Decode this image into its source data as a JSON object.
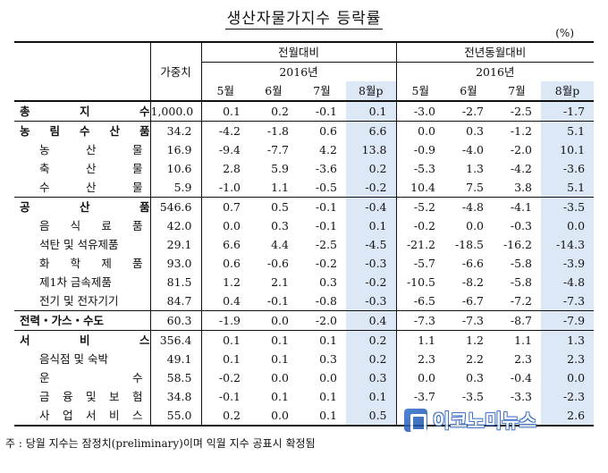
{
  "title": "생산자물가지수 등락률",
  "unit": "(%)",
  "header": {
    "weight": "가중치",
    "mom": "전월대비",
    "yoy": "전년동월대비",
    "year": "2016년",
    "months": [
      "5월",
      "6월",
      "7월",
      "8월p"
    ]
  },
  "rows": [
    {
      "name": "총 지 수",
      "weight": "1,000.0",
      "v": [
        "0.1",
        "0.2",
        "-0.1",
        "0.1",
        "-3.0",
        "-2.7",
        "-2.5",
        "-1.7"
      ]
    },
    {
      "name": "농 림 수 산 품",
      "weight": "34.2",
      "v": [
        "-4.2",
        "-1.8",
        "0.6",
        "6.6",
        "0.0",
        "0.3",
        "-1.2",
        "5.1"
      ]
    },
    {
      "name": "농 산 물",
      "weight": "16.9",
      "v": [
        "-9.4",
        "-7.7",
        "4.2",
        "13.8",
        "-0.9",
        "-4.0",
        "-2.0",
        "10.1"
      ]
    },
    {
      "name": "축 산 물",
      "weight": "10.6",
      "v": [
        "2.8",
        "5.9",
        "-3.6",
        "0.2",
        "-5.3",
        "1.3",
        "-4.2",
        "-3.6"
      ]
    },
    {
      "name": "수 산 물",
      "weight": "5.9",
      "v": [
        "-1.0",
        "1.1",
        "-0.5",
        "-0.2",
        "10.4",
        "7.5",
        "3.8",
        "5.1"
      ]
    },
    {
      "name": "공 산 품",
      "weight": "546.6",
      "v": [
        "0.7",
        "0.5",
        "-0.1",
        "-0.4",
        "-5.2",
        "-4.8",
        "-4.1",
        "-3.5"
      ]
    },
    {
      "name": "음 식 료 품",
      "weight": "42.0",
      "v": [
        "0.0",
        "0.3",
        "-0.1",
        "0.1",
        "-0.2",
        "0.0",
        "-0.3",
        "0.0"
      ]
    },
    {
      "name": "석탄 및 석유제품",
      "weight": "29.1",
      "v": [
        "6.6",
        "4.4",
        "-2.5",
        "-4.5",
        "-21.2",
        "-18.5",
        "-16.2",
        "-14.3"
      ]
    },
    {
      "name": "화 학 제 품",
      "weight": "93.0",
      "v": [
        "0.6",
        "-0.6",
        "-0.2",
        "-0.3",
        "-5.7",
        "-6.6",
        "-5.8",
        "-3.9"
      ]
    },
    {
      "name": "제1차 금속제품",
      "weight": "81.5",
      "v": [
        "1.2",
        "2.1",
        "0.3",
        "-0.2",
        "-10.5",
        "-8.2",
        "-5.8",
        "-4.8"
      ]
    },
    {
      "name": "전기 및 전자기기",
      "weight": "84.7",
      "v": [
        "0.4",
        "-0.1",
        "-0.8",
        "-0.3",
        "-6.5",
        "-6.7",
        "-7.2",
        "-7.3"
      ]
    },
    {
      "name": "전력・가스・수도",
      "weight": "60.3",
      "v": [
        "-1.9",
        "0.0",
        "-2.0",
        "0.4",
        "-7.3",
        "-7.3",
        "-8.7",
        "-7.9"
      ]
    },
    {
      "name": "서 비 스",
      "weight": "356.4",
      "v": [
        "0.1",
        "0.1",
        "0.1",
        "0.2",
        "1.1",
        "1.2",
        "1.1",
        "1.3"
      ]
    },
    {
      "name": "음식점 및 숙박",
      "weight": "49.1",
      "v": [
        "0.1",
        "0.1",
        "0.3",
        "0.2",
        "2.3",
        "2.2",
        "2.3",
        "2.3"
      ]
    },
    {
      "name": "운 수",
      "weight": "58.5",
      "v": [
        "-0.2",
        "0.0",
        "0.0",
        "0.3",
        "0.0",
        "0.3",
        "-0.4",
        "0.0"
      ]
    },
    {
      "name": "금 융 및 보 험",
      "weight": "34.8",
      "v": [
        "-0.1",
        "0.1",
        "0.1",
        "0.1",
        "-3.7",
        "-3.5",
        "-3.3",
        "-2.3"
      ]
    },
    {
      "name": "사 업 서 비 스",
      "weight": "55.0",
      "v": [
        "0.2",
        "0.0",
        "0.1",
        "0.5",
        "",
        "",
        "",
        "2.6"
      ]
    }
  ],
  "footnote": "주 : 당월 지수는 잠정치(preliminary)이며 익월 지수 공표시 확정됨",
  "watermark": {
    "text": "이코노미뉴스",
    "color": "#1f5bbd"
  }
}
